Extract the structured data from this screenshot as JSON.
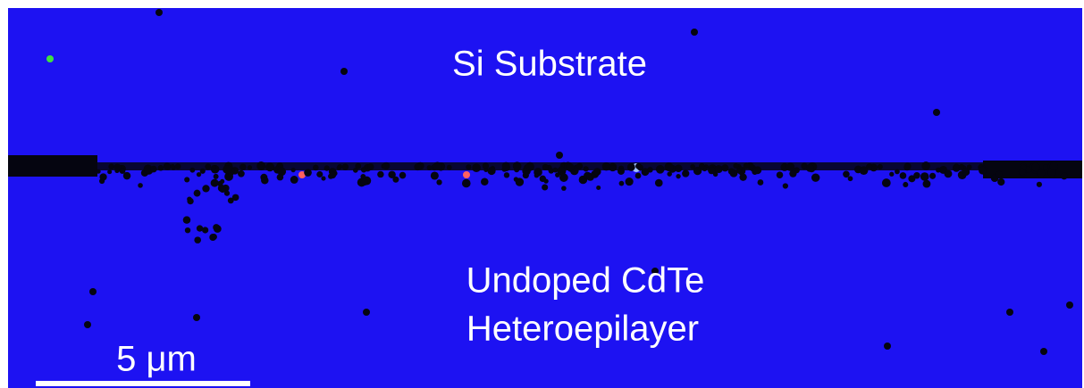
{
  "image": {
    "labels": {
      "top_region": "Si Substrate",
      "bottom_region_line1": "Undoped CdTe",
      "bottom_region_line2": "Heteroepilayer"
    },
    "scale_bar": {
      "label": "5 μm"
    }
  }
}
